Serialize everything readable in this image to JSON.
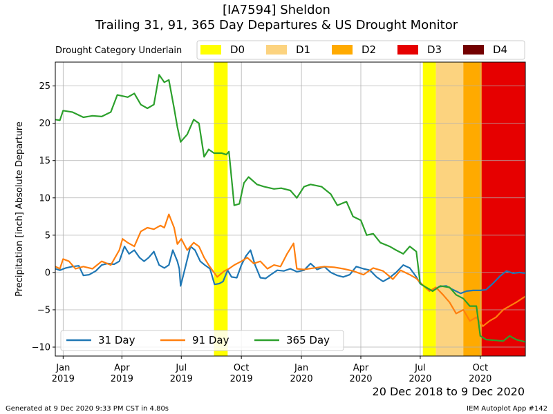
{
  "chart_data": {
    "type": "line",
    "title": "[IA7594] Sheldon",
    "subtitle": "Trailing 31, 91, 365 Day Departures & US Drought Monitor",
    "ylabel": "Precipitation [inch] Absolute Departure",
    "date_range_label": "20 Dec 2018 to 9 Dec 2020",
    "footer_left": "Generated at 9 Dec 2020 9:33 PM CST in 4.80s",
    "footer_right": "IEM Autoplot App #142",
    "xlim": [
      "2018-12-20",
      "2020-12-09"
    ],
    "ylim": [
      -11.2,
      28.2
    ],
    "yticks": [
      -10,
      -5,
      0,
      5,
      10,
      15,
      20,
      25
    ],
    "xticks": [
      {
        "date": "2019-01-01",
        "line1": "Jan",
        "line2": "2019"
      },
      {
        "date": "2019-04-01",
        "line1": "Apr",
        "line2": "2019"
      },
      {
        "date": "2019-07-01",
        "line1": "Jul",
        "line2": "2019"
      },
      {
        "date": "2019-10-01",
        "line1": "Oct",
        "line2": "2019"
      },
      {
        "date": "2020-01-01",
        "line1": "Jan",
        "line2": "2020"
      },
      {
        "date": "2020-04-01",
        "line1": "Apr",
        "line2": "2020"
      },
      {
        "date": "2020-07-01",
        "line1": "Jul",
        "line2": "2020"
      },
      {
        "date": "2020-10-01",
        "line1": "Oct",
        "line2": "2020"
      }
    ],
    "grid": true,
    "drought_legend_title": "Drought Category Underlain",
    "drought_categories": [
      {
        "name": "D0",
        "color": "#ffff00"
      },
      {
        "name": "D1",
        "color": "#fcd37f"
      },
      {
        "name": "D2",
        "color": "#ffaa00"
      },
      {
        "name": "D3",
        "color": "#e60000"
      },
      {
        "name": "D4",
        "color": "#730000"
      }
    ],
    "drought_periods": [
      {
        "category": "D0",
        "start": "2019-08-20",
        "end": "2019-09-10"
      },
      {
        "category": "D0",
        "start": "2020-07-05",
        "end": "2020-07-25"
      },
      {
        "category": "D1",
        "start": "2020-07-25",
        "end": "2020-09-05"
      },
      {
        "category": "D2",
        "start": "2020-09-05",
        "end": "2020-10-03"
      },
      {
        "category": "D3",
        "start": "2020-10-03",
        "end": "2020-12-09"
      }
    ],
    "legend_placement": "lower-left",
    "series": [
      {
        "name": "31 Day",
        "color": "#1f77b4",
        "points": [
          [
            "2018-12-20",
            0.5
          ],
          [
            "2018-12-27",
            0.3
          ],
          [
            "2019-01-05",
            0.6
          ],
          [
            "2019-01-15",
            0.8
          ],
          [
            "2019-01-25",
            0.9
          ],
          [
            "2019-02-01",
            -0.4
          ],
          [
            "2019-02-10",
            -0.3
          ],
          [
            "2019-02-20",
            0.2
          ],
          [
            "2019-03-01",
            1.0
          ],
          [
            "2019-03-10",
            1.2
          ],
          [
            "2019-03-20",
            1.1
          ],
          [
            "2019-03-28",
            1.5
          ],
          [
            "2019-04-05",
            3.5
          ],
          [
            "2019-04-12",
            2.5
          ],
          [
            "2019-04-20",
            3.0
          ],
          [
            "2019-04-28",
            2.0
          ],
          [
            "2019-05-05",
            1.5
          ],
          [
            "2019-05-12",
            2.0
          ],
          [
            "2019-05-20",
            2.8
          ],
          [
            "2019-05-28",
            1.0
          ],
          [
            "2019-06-05",
            0.6
          ],
          [
            "2019-06-12",
            1.0
          ],
          [
            "2019-06-18",
            3.0
          ],
          [
            "2019-06-25",
            1.5
          ],
          [
            "2019-06-28",
            0.5
          ],
          [
            "2019-06-30",
            -1.8
          ],
          [
            "2019-07-08",
            1.0
          ],
          [
            "2019-07-15",
            3.5
          ],
          [
            "2019-07-22",
            3.0
          ],
          [
            "2019-07-30",
            1.5
          ],
          [
            "2019-08-06",
            1.0
          ],
          [
            "2019-08-14",
            0.5
          ],
          [
            "2019-08-21",
            -1.6
          ],
          [
            "2019-08-28",
            -1.5
          ],
          [
            "2019-09-03",
            -1.2
          ],
          [
            "2019-09-10",
            0.3
          ],
          [
            "2019-09-16",
            -0.6
          ],
          [
            "2019-09-24",
            -0.7
          ],
          [
            "2019-10-01",
            1.0
          ],
          [
            "2019-10-08",
            2.2
          ],
          [
            "2019-10-15",
            3.0
          ],
          [
            "2019-10-22",
            1.0
          ],
          [
            "2019-10-30",
            -0.7
          ],
          [
            "2019-11-07",
            -0.8
          ],
          [
            "2019-11-15",
            -0.3
          ],
          [
            "2019-11-25",
            0.3
          ],
          [
            "2019-12-05",
            0.2
          ],
          [
            "2019-12-15",
            0.5
          ],
          [
            "2019-12-25",
            0.1
          ],
          [
            "2020-01-05",
            0.3
          ],
          [
            "2020-01-15",
            1.2
          ],
          [
            "2020-01-25",
            0.4
          ],
          [
            "2020-02-05",
            0.8
          ],
          [
            "2020-02-15",
            0.0
          ],
          [
            "2020-02-25",
            -0.4
          ],
          [
            "2020-03-05",
            -0.6
          ],
          [
            "2020-03-15",
            -0.3
          ],
          [
            "2020-03-25",
            0.8
          ],
          [
            "2020-04-05",
            0.5
          ],
          [
            "2020-04-15",
            0.3
          ],
          [
            "2020-04-25",
            -0.6
          ],
          [
            "2020-05-05",
            -1.2
          ],
          [
            "2020-05-15",
            -0.7
          ],
          [
            "2020-05-25",
            0.0
          ],
          [
            "2020-06-05",
            1.0
          ],
          [
            "2020-06-15",
            0.6
          ],
          [
            "2020-06-25",
            -0.6
          ],
          [
            "2020-07-01",
            -1.5
          ],
          [
            "2020-07-10",
            -2.0
          ],
          [
            "2020-07-20",
            -2.5
          ],
          [
            "2020-07-30",
            -1.9
          ],
          [
            "2020-08-10",
            -1.8
          ],
          [
            "2020-08-20",
            -2.3
          ],
          [
            "2020-09-01",
            -2.8
          ],
          [
            "2020-09-10",
            -2.5
          ],
          [
            "2020-09-20",
            -2.4
          ],
          [
            "2020-10-01",
            -2.4
          ],
          [
            "2020-10-10",
            -2.3
          ],
          [
            "2020-10-20",
            -1.5
          ],
          [
            "2020-10-31",
            -0.5
          ],
          [
            "2020-11-10",
            0.2
          ],
          [
            "2020-11-20",
            -0.1
          ],
          [
            "2020-11-30",
            0.0
          ],
          [
            "2020-12-09",
            -0.1
          ]
        ]
      },
      {
        "name": "91 Day",
        "color": "#ff7f0e",
        "points": [
          [
            "2018-12-20",
            0.8
          ],
          [
            "2018-12-27",
            0.5
          ],
          [
            "2019-01-01",
            1.8
          ],
          [
            "2019-01-10",
            1.5
          ],
          [
            "2019-01-20",
            0.5
          ],
          [
            "2019-02-01",
            0.8
          ],
          [
            "2019-02-15",
            0.5
          ],
          [
            "2019-03-01",
            1.5
          ],
          [
            "2019-03-15",
            1.0
          ],
          [
            "2019-03-28",
            3.0
          ],
          [
            "2019-04-02",
            4.5
          ],
          [
            "2019-04-10",
            4.0
          ],
          [
            "2019-04-20",
            3.5
          ],
          [
            "2019-04-30",
            5.5
          ],
          [
            "2019-05-10",
            6.0
          ],
          [
            "2019-05-20",
            5.8
          ],
          [
            "2019-05-30",
            6.3
          ],
          [
            "2019-06-05",
            6.0
          ],
          [
            "2019-06-12",
            7.8
          ],
          [
            "2019-06-20",
            6.0
          ],
          [
            "2019-06-25",
            3.8
          ],
          [
            "2019-07-01",
            4.5
          ],
          [
            "2019-07-10",
            3.0
          ],
          [
            "2019-07-20",
            4.0
          ],
          [
            "2019-07-28",
            3.5
          ],
          [
            "2019-08-05",
            2.0
          ],
          [
            "2019-08-12",
            1.0
          ],
          [
            "2019-08-20",
            0.0
          ],
          [
            "2019-08-25",
            -0.6
          ],
          [
            "2019-09-05",
            0.2
          ],
          [
            "2019-09-12",
            0.5
          ],
          [
            "2019-09-20",
            1.0
          ],
          [
            "2019-10-01",
            1.5
          ],
          [
            "2019-10-10",
            2.0
          ],
          [
            "2019-10-20",
            1.2
          ],
          [
            "2019-10-30",
            1.5
          ],
          [
            "2019-11-10",
            0.5
          ],
          [
            "2019-11-20",
            1.0
          ],
          [
            "2019-11-30",
            0.8
          ],
          [
            "2019-12-10",
            2.5
          ],
          [
            "2019-12-20",
            3.9
          ],
          [
            "2019-12-25",
            0.5
          ],
          [
            "2020-01-05",
            0.4
          ],
          [
            "2020-01-20",
            0.6
          ],
          [
            "2020-02-05",
            0.8
          ],
          [
            "2020-02-20",
            0.7
          ],
          [
            "2020-03-05",
            0.5
          ],
          [
            "2020-03-20",
            0.2
          ],
          [
            "2020-04-05",
            -0.3
          ],
          [
            "2020-04-20",
            0.6
          ],
          [
            "2020-05-05",
            0.2
          ],
          [
            "2020-05-20",
            -0.9
          ],
          [
            "2020-06-01",
            0.3
          ],
          [
            "2020-06-15",
            -0.3
          ],
          [
            "2020-06-25",
            -0.8
          ],
          [
            "2020-07-05",
            -1.7
          ],
          [
            "2020-07-15",
            -2.5
          ],
          [
            "2020-07-25",
            -2.0
          ],
          [
            "2020-08-05",
            -3.0
          ],
          [
            "2020-08-15",
            -4.0
          ],
          [
            "2020-08-25",
            -5.5
          ],
          [
            "2020-09-05",
            -5.0
          ],
          [
            "2020-09-15",
            -6.5
          ],
          [
            "2020-09-25",
            -6.0
          ],
          [
            "2020-10-05",
            -7.2
          ],
          [
            "2020-10-15",
            -6.5
          ],
          [
            "2020-10-25",
            -6.0
          ],
          [
            "2020-11-05",
            -5.0
          ],
          [
            "2020-11-15",
            -4.5
          ],
          [
            "2020-11-25",
            -4.0
          ],
          [
            "2020-12-09",
            -3.2
          ]
        ]
      },
      {
        "name": "365 Day",
        "color": "#2ca02c",
        "points": [
          [
            "2018-12-20",
            20.5
          ],
          [
            "2018-12-27",
            20.4
          ],
          [
            "2019-01-01",
            21.7
          ],
          [
            "2019-01-15",
            21.5
          ],
          [
            "2019-02-01",
            20.8
          ],
          [
            "2019-02-15",
            21.0
          ],
          [
            "2019-03-01",
            20.9
          ],
          [
            "2019-03-15",
            21.5
          ],
          [
            "2019-03-25",
            23.8
          ],
          [
            "2019-04-10",
            23.5
          ],
          [
            "2019-04-20",
            24.0
          ],
          [
            "2019-04-30",
            22.5
          ],
          [
            "2019-05-10",
            22.0
          ],
          [
            "2019-05-20",
            22.5
          ],
          [
            "2019-05-28",
            26.5
          ],
          [
            "2019-06-05",
            25.5
          ],
          [
            "2019-06-12",
            25.8
          ],
          [
            "2019-06-20",
            22.0
          ],
          [
            "2019-06-25",
            19.5
          ],
          [
            "2019-06-30",
            17.5
          ],
          [
            "2019-07-10",
            18.5
          ],
          [
            "2019-07-20",
            20.5
          ],
          [
            "2019-07-28",
            20.0
          ],
          [
            "2019-08-05",
            15.5
          ],
          [
            "2019-08-12",
            16.5
          ],
          [
            "2019-08-20",
            16.0
          ],
          [
            "2019-09-01",
            16.0
          ],
          [
            "2019-09-08",
            15.8
          ],
          [
            "2019-09-12",
            16.2
          ],
          [
            "2019-09-20",
            9.0
          ],
          [
            "2019-09-28",
            9.2
          ],
          [
            "2019-10-05",
            12.0
          ],
          [
            "2019-10-12",
            12.8
          ],
          [
            "2019-10-25",
            11.8
          ],
          [
            "2019-11-05",
            11.5
          ],
          [
            "2019-11-20",
            11.2
          ],
          [
            "2019-12-01",
            11.3
          ],
          [
            "2019-12-15",
            11.0
          ],
          [
            "2019-12-25",
            10.0
          ],
          [
            "2020-01-05",
            11.5
          ],
          [
            "2020-01-15",
            11.8
          ],
          [
            "2020-02-01",
            11.5
          ],
          [
            "2020-02-15",
            10.5
          ],
          [
            "2020-02-25",
            9.0
          ],
          [
            "2020-03-10",
            9.5
          ],
          [
            "2020-03-20",
            7.5
          ],
          [
            "2020-04-01",
            7.0
          ],
          [
            "2020-04-10",
            5.0
          ],
          [
            "2020-04-20",
            5.2
          ],
          [
            "2020-05-01",
            4.0
          ],
          [
            "2020-05-15",
            3.5
          ],
          [
            "2020-05-25",
            3.0
          ],
          [
            "2020-06-05",
            2.5
          ],
          [
            "2020-06-15",
            3.5
          ],
          [
            "2020-06-25",
            2.8
          ],
          [
            "2020-07-01",
            -1.5
          ],
          [
            "2020-07-10",
            -2.0
          ],
          [
            "2020-07-20",
            -2.5
          ],
          [
            "2020-08-01",
            -1.8
          ],
          [
            "2020-08-15",
            -2.0
          ],
          [
            "2020-08-25",
            -3.0
          ],
          [
            "2020-09-05",
            -3.5
          ],
          [
            "2020-09-15",
            -4.5
          ],
          [
            "2020-09-25",
            -4.5
          ],
          [
            "2020-10-01",
            -8.5
          ],
          [
            "2020-10-10",
            -9.0
          ],
          [
            "2020-10-25",
            -9.1
          ],
          [
            "2020-11-05",
            -9.2
          ],
          [
            "2020-11-15",
            -8.5
          ],
          [
            "2020-11-25",
            -9.0
          ],
          [
            "2020-12-09",
            -9.3
          ]
        ]
      }
    ]
  }
}
